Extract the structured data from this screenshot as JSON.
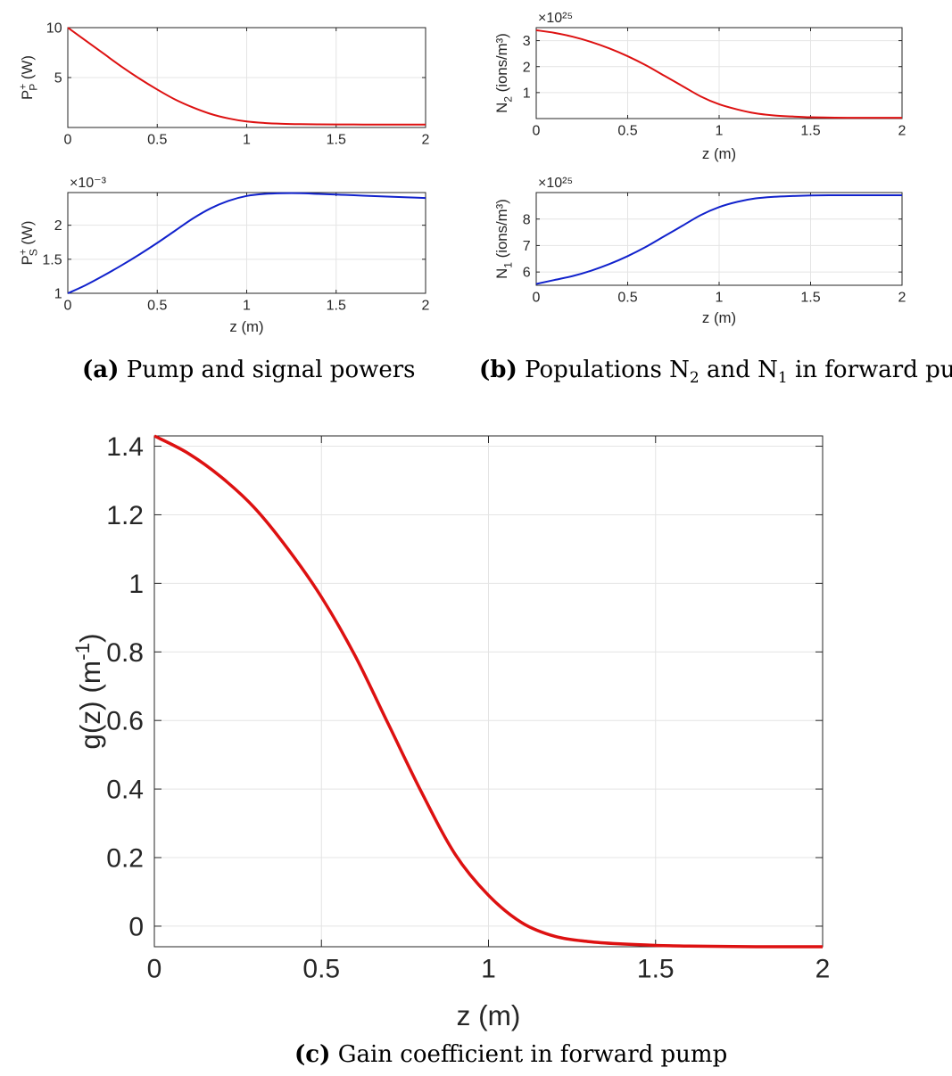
{
  "figure": {
    "captions": [
      {
        "tag": "(a)",
        "text": "Pump and signal powers"
      },
      {
        "tag": "(b)",
        "text": "Populations N",
        "sub1": "2",
        "mid": " and N",
        "sub2": "1",
        "tail": " in forward pump"
      },
      {
        "tag": "(c)",
        "text": "Gain coefficient in forward pump"
      }
    ]
  },
  "chart_data": [
    {
      "id": "pp",
      "type": "line",
      "title": "",
      "xlabel": "",
      "ylabel_base": "P",
      "ylabel_sup": "+",
      "ylabel_sub": "P",
      "ylabel_unit": " (W)",
      "xlim": [
        0,
        2
      ],
      "ylim": [
        0,
        10
      ],
      "xticks": [
        0,
        0.5,
        1,
        1.5,
        2
      ],
      "xtick_labels": [
        "0",
        "0.5",
        "1",
        "1.5",
        "2"
      ],
      "yticks": [
        5,
        10
      ],
      "ytick_labels": [
        "5",
        "10"
      ],
      "multiplier": "",
      "grid": true,
      "color": "#dd1111",
      "x": [
        0,
        0.1,
        0.2,
        0.3,
        0.4,
        0.5,
        0.6,
        0.7,
        0.8,
        0.9,
        1.0,
        1.1,
        1.2,
        1.3,
        1.4,
        1.5,
        1.6,
        1.7,
        1.8,
        1.9,
        2.0
      ],
      "y": [
        10,
        8.7,
        7.4,
        6.1,
        4.9,
        3.8,
        2.8,
        2.0,
        1.35,
        0.9,
        0.6,
        0.45,
        0.37,
        0.33,
        0.31,
        0.3,
        0.3,
        0.29,
        0.29,
        0.29,
        0.29
      ]
    },
    {
      "id": "ps",
      "type": "line",
      "title": "",
      "xlabel": "z (m)",
      "ylabel_base": "P",
      "ylabel_sup": "+",
      "ylabel_sub": "S",
      "ylabel_unit": " (W)",
      "xlim": [
        0,
        2
      ],
      "ylim": [
        0.001,
        0.00248
      ],
      "xticks": [
        0,
        0.5,
        1,
        1.5,
        2
      ],
      "xtick_labels": [
        "0",
        "0.5",
        "1",
        "1.5",
        "2"
      ],
      "yticks": [
        0.001,
        0.0015,
        0.002
      ],
      "ytick_labels": [
        "1",
        "1.5",
        "2"
      ],
      "multiplier": "×10⁻³",
      "grid": true,
      "color": "#1122cc",
      "x": [
        0,
        0.1,
        0.2,
        0.3,
        0.4,
        0.5,
        0.6,
        0.7,
        0.8,
        0.9,
        1.0,
        1.1,
        1.2,
        1.3,
        1.4,
        1.5,
        1.6,
        1.7,
        1.8,
        1.9,
        2.0
      ],
      "y": [
        0.001,
        0.00112,
        0.00126,
        0.00141,
        0.00157,
        0.00174,
        0.00192,
        0.0021,
        0.00225,
        0.00236,
        0.00243,
        0.00246,
        0.00247,
        0.00247,
        0.00246,
        0.00245,
        0.00244,
        0.00243,
        0.00242,
        0.00241,
        0.0024
      ]
    },
    {
      "id": "n2",
      "type": "line",
      "title": "",
      "xlabel": "z (m)",
      "ylabel_base": "N",
      "ylabel_sup": "",
      "ylabel_sub": "2",
      "ylabel_unit": " (ions/m³)",
      "xlim": [
        0,
        2
      ],
      "ylim": [
        0,
        3.5
      ],
      "xticks": [
        0,
        0.5,
        1,
        1.5,
        2
      ],
      "xtick_labels": [
        "0",
        "0.5",
        "1",
        "1.5",
        "2"
      ],
      "yticks": [
        1,
        2,
        3
      ],
      "ytick_labels": [
        "1",
        "2",
        "3"
      ],
      "multiplier": "×10²⁵",
      "grid": true,
      "color": "#dd1111",
      "x": [
        0,
        0.1,
        0.2,
        0.3,
        0.4,
        0.5,
        0.6,
        0.7,
        0.8,
        0.9,
        1.0,
        1.1,
        1.2,
        1.3,
        1.4,
        1.5,
        1.6,
        1.7,
        1.8,
        1.9,
        2.0
      ],
      "y": [
        3.4,
        3.3,
        3.15,
        2.95,
        2.7,
        2.4,
        2.05,
        1.65,
        1.25,
        0.85,
        0.55,
        0.35,
        0.2,
        0.12,
        0.08,
        0.05,
        0.04,
        0.03,
        0.03,
        0.03,
        0.03
      ]
    },
    {
      "id": "n1",
      "type": "line",
      "title": "",
      "xlabel": "z (m)",
      "ylabel_base": "N",
      "ylabel_sup": "",
      "ylabel_sub": "1",
      "ylabel_unit": " (ions/m³)",
      "xlim": [
        0,
        2
      ],
      "ylim": [
        5.5,
        9
      ],
      "xticks": [
        0,
        0.5,
        1,
        1.5,
        2
      ],
      "xtick_labels": [
        "0",
        "0.5",
        "1",
        "1.5",
        "2"
      ],
      "yticks": [
        6,
        7,
        8
      ],
      "ytick_labels": [
        "6",
        "7",
        "8"
      ],
      "multiplier": "×10²⁵",
      "grid": true,
      "color": "#1122cc",
      "x": [
        0,
        0.1,
        0.2,
        0.3,
        0.4,
        0.5,
        0.6,
        0.7,
        0.8,
        0.9,
        1.0,
        1.1,
        1.2,
        1.3,
        1.4,
        1.5,
        1.6,
        1.7,
        1.8,
        1.9,
        2.0
      ],
      "y": [
        5.55,
        5.7,
        5.85,
        6.05,
        6.3,
        6.6,
        6.95,
        7.35,
        7.75,
        8.15,
        8.45,
        8.65,
        8.78,
        8.84,
        8.87,
        8.89,
        8.9,
        8.9,
        8.9,
        8.9,
        8.9
      ]
    },
    {
      "id": "gz",
      "type": "line",
      "title": "",
      "xlabel": "z (m)",
      "ylabel_base": "g(z) (m",
      "ylabel_sup": "-1",
      "ylabel_sub": "",
      "ylabel_unit": ")",
      "xlim": [
        0,
        2
      ],
      "ylim": [
        -0.06,
        1.43
      ],
      "xticks": [
        0,
        0.5,
        1,
        1.5,
        2
      ],
      "xtick_labels": [
        "0",
        "0.5",
        "1",
        "1.5",
        "2"
      ],
      "yticks": [
        0,
        0.2,
        0.4,
        0.6,
        0.8,
        1,
        1.2,
        1.4
      ],
      "ytick_labels": [
        "0",
        "0.2",
        "0.4",
        "0.6",
        "0.8",
        "1",
        "1.2",
        "1.4"
      ],
      "multiplier": "",
      "grid": true,
      "color": "#dd1111",
      "x": [
        0,
        0.1,
        0.2,
        0.3,
        0.4,
        0.5,
        0.6,
        0.7,
        0.8,
        0.9,
        1.0,
        1.1,
        1.2,
        1.3,
        1.4,
        1.5,
        1.6,
        1.7,
        1.8,
        1.9,
        2.0
      ],
      "y": [
        1.43,
        1.38,
        1.31,
        1.22,
        1.1,
        0.96,
        0.79,
        0.59,
        0.39,
        0.21,
        0.09,
        0.01,
        -0.03,
        -0.045,
        -0.052,
        -0.056,
        -0.058,
        -0.059,
        -0.06,
        -0.06,
        -0.06
      ]
    }
  ]
}
